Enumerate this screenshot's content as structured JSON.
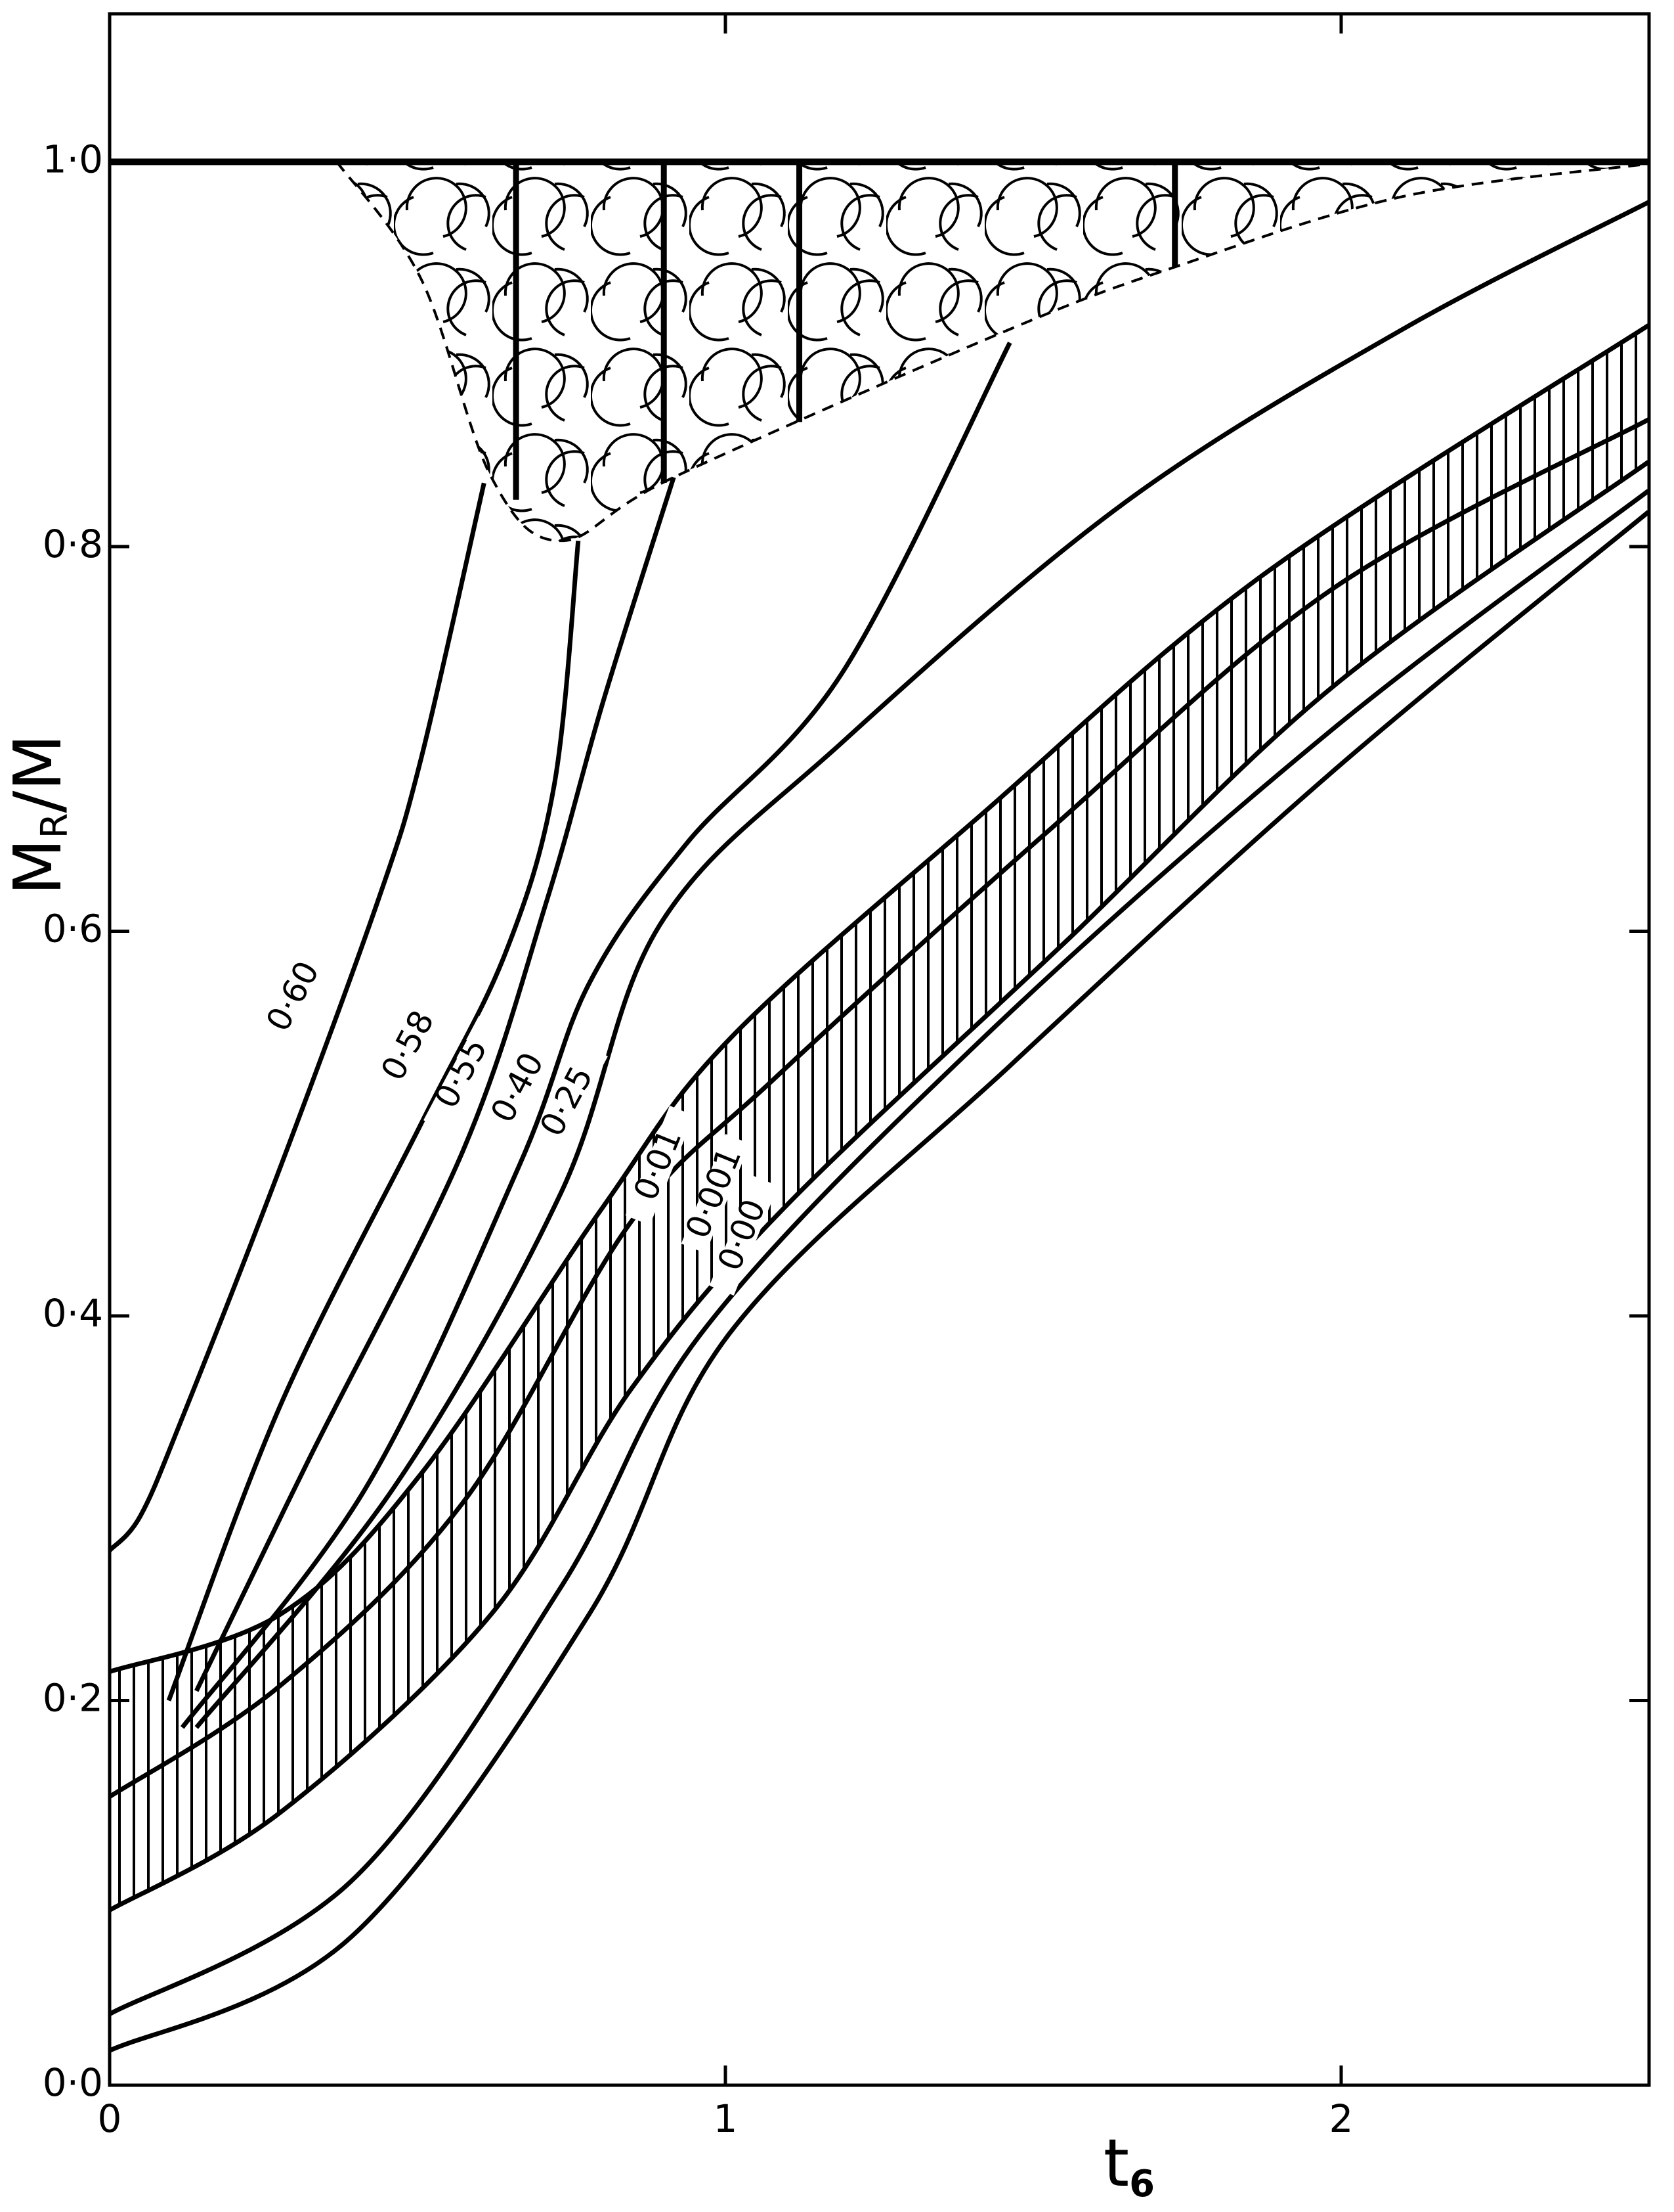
{
  "chart_data": {
    "type": "line",
    "xlabel": [
      "t",
      "6"
    ],
    "ylabel": [
      "M",
      "R",
      "/M"
    ],
    "xlim": [
      0,
      2.5
    ],
    "ylim": [
      0,
      1.077
    ],
    "xticks": [
      0,
      1,
      2
    ],
    "yticks": [
      {
        "value": 0,
        "label": "0·0"
      },
      {
        "value": 0.2,
        "label": "0·2"
      },
      {
        "value": 0.4,
        "label": "0·4"
      },
      {
        "value": 0.6,
        "label": "0·6"
      },
      {
        "value": 0.8,
        "label": "0·8"
      },
      {
        "value": 1.0,
        "label": "1·0"
      }
    ],
    "series": [
      {
        "name": "0·60",
        "color": "#000000",
        "x": [
          0,
          0.05,
          0.118,
          0.278,
          0.437,
          0.506,
          0.608
        ],
        "values": [
          0.278,
          0.296,
          0.347,
          0.478,
          0.617,
          0.69,
          0.833
        ]
      },
      {
        "name": "0·58",
        "color": "#000000",
        "x": [
          0.096,
          0.278,
          0.506,
          0.642,
          0.722,
          0.761
        ],
        "values": [
          0.2,
          0.354,
          0.5,
          0.588,
          0.676,
          0.803
        ]
      },
      {
        "name": "0·55",
        "color": "#000000",
        "x": [
          0.141,
          0.323,
          0.574,
          0.711,
          0.802,
          0.916
        ],
        "values": [
          0.205,
          0.325,
          0.486,
          0.617,
          0.72,
          0.836
        ]
      },
      {
        "name": "0·40",
        "color": "#000000",
        "x": [
          0.118,
          0.415,
          0.665,
          0.779,
          0.938,
          1.189,
          1.462
        ],
        "values": [
          0.186,
          0.31,
          0.478,
          0.573,
          0.646,
          0.734,
          0.906
        ]
      },
      {
        "name": "0·25",
        "color": "#000000",
        "x": [
          0.141,
          0.46,
          0.733,
          0.893,
          1.189,
          1.645,
          2.1,
          2.499
        ],
        "values": [
          0.186,
          0.31,
          0.464,
          0.603,
          0.698,
          0.822,
          0.913,
          0.979
        ]
      },
      {
        "name": "0·01",
        "color": "#000000",
        "x": [
          0,
          0.278,
          0.506,
          0.802,
          1.007,
          1.417,
          1.872,
          2.499
        ],
        "values": [
          0.215,
          0.245,
          0.318,
          0.457,
          0.544,
          0.661,
          0.785,
          0.915
        ]
      },
      {
        "name": "0·001",
        "color": "#000000",
        "x": [
          0,
          0.278,
          0.574,
          0.847,
          1.075,
          1.531,
          1.986,
          2.499
        ],
        "values": [
          0.15,
          0.208,
          0.303,
          0.449,
          0.522,
          0.654,
          0.778,
          0.866
        ]
      },
      {
        "name": "0·00",
        "color": "#000000",
        "x": [
          0,
          0.278,
          0.62,
          0.847,
          1.098,
          1.554,
          1.986,
          2.499
        ],
        "values": [
          0.091,
          0.142,
          0.245,
          0.362,
          0.457,
          0.595,
          0.727,
          0.844
        ]
      },
      {
        "color": "#000000",
        "x": [
          0,
          0.392,
          0.733,
          0.961,
          1.417,
          1.986,
          2.499
        ],
        "values": [
          0.037,
          0.106,
          0.259,
          0.391,
          0.544,
          0.705,
          0.829
        ]
      },
      {
        "color": "#000000",
        "x": [
          0,
          0.392,
          0.779,
          1.007,
          1.462,
          1.986,
          2.499
        ],
        "values": [
          0.018,
          0.077,
          0.245,
          0.391,
          0.53,
          0.683,
          0.818
        ]
      },
      {
        "color": "#000000",
        "x": [
          0,
          2.5
        ],
        "values": [
          1.0,
          1.0
        ]
      }
    ],
    "convective_zone": {
      "x": [
        0.369,
        0.506,
        0.62,
        0.733,
        0.916,
        1.462,
        1.736,
        2.1,
        2.499
      ],
      "values": [
        1.0,
        0.939,
        0.836,
        0.803,
        0.836,
        0.913,
        0.946,
        0.982,
        0.999
      ],
      "top": 1.0,
      "dividers": [
        0.66,
        0.9,
        1.12,
        1.73
      ]
    }
  }
}
